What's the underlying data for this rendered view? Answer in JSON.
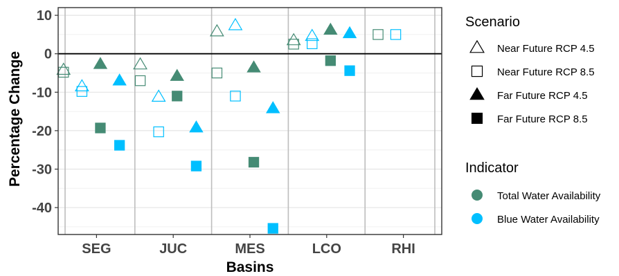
{
  "chart_data": {
    "type": "scatter",
    "xlabel": "Basins",
    "ylabel": "Percentage Change",
    "categories": [
      "SEG",
      "JUC",
      "MES",
      "LCO",
      "RHI"
    ],
    "ylim": [
      -47,
      12
    ],
    "yticks": [
      10,
      0,
      -10,
      -20,
      -30,
      -40
    ],
    "grid": true,
    "zero_line": true,
    "legend_position": "right",
    "scenario_legend": {
      "title": "Scenario",
      "items": [
        {
          "name": "Near Future RCP 4.5",
          "shape": "triangle-open"
        },
        {
          "name": "Near Future RCP 8.5",
          "shape": "square-open"
        },
        {
          "name": "Far Future RCP 4.5",
          "shape": "triangle-filled"
        },
        {
          "name": "Far Future RCP 8.5",
          "shape": "square-filled"
        }
      ]
    },
    "indicator_legend": {
      "title": "Indicator",
      "items": [
        {
          "name": "Total Water Availability",
          "color": "#458B74"
        },
        {
          "name": "Blue Water Availability",
          "color": "#00BFFF"
        }
      ]
    },
    "series": [
      {
        "scenario": "Near Future RCP 4.5",
        "indicator": "Total Water Availability",
        "values": [
          -4.2,
          -2.8,
          5.8,
          3.5,
          null
        ]
      },
      {
        "scenario": "Near Future RCP 8.5",
        "indicator": "Total Water Availability",
        "values": [
          -4.8,
          -7.0,
          -5.0,
          2.5,
          5.0
        ]
      },
      {
        "scenario": "Near Future RCP 4.5",
        "indicator": "Blue Water Availability",
        "values": [
          -8.5,
          -11.2,
          7.4,
          4.6,
          null
        ]
      },
      {
        "scenario": "Near Future RCP 8.5",
        "indicator": "Blue Water Availability",
        "values": [
          -9.8,
          -20.3,
          -11.0,
          2.6,
          5.0
        ]
      },
      {
        "scenario": "Far Future RCP 4.5",
        "indicator": "Total Water Availability",
        "values": [
          -2.7,
          -5.8,
          -3.6,
          6.2,
          null
        ]
      },
      {
        "scenario": "Far Future RCP 8.5",
        "indicator": "Total Water Availability",
        "values": [
          -19.3,
          -11.0,
          -28.2,
          -1.8,
          null
        ]
      },
      {
        "scenario": "Far Future RCP 4.5",
        "indicator": "Blue Water Availability",
        "values": [
          -7.0,
          -19.2,
          -14.2,
          5.3,
          null
        ]
      },
      {
        "scenario": "Far Future RCP 8.5",
        "indicator": "Blue Water Availability",
        "values": [
          -23.8,
          -29.2,
          -45.4,
          -4.4,
          null
        ]
      }
    ]
  }
}
